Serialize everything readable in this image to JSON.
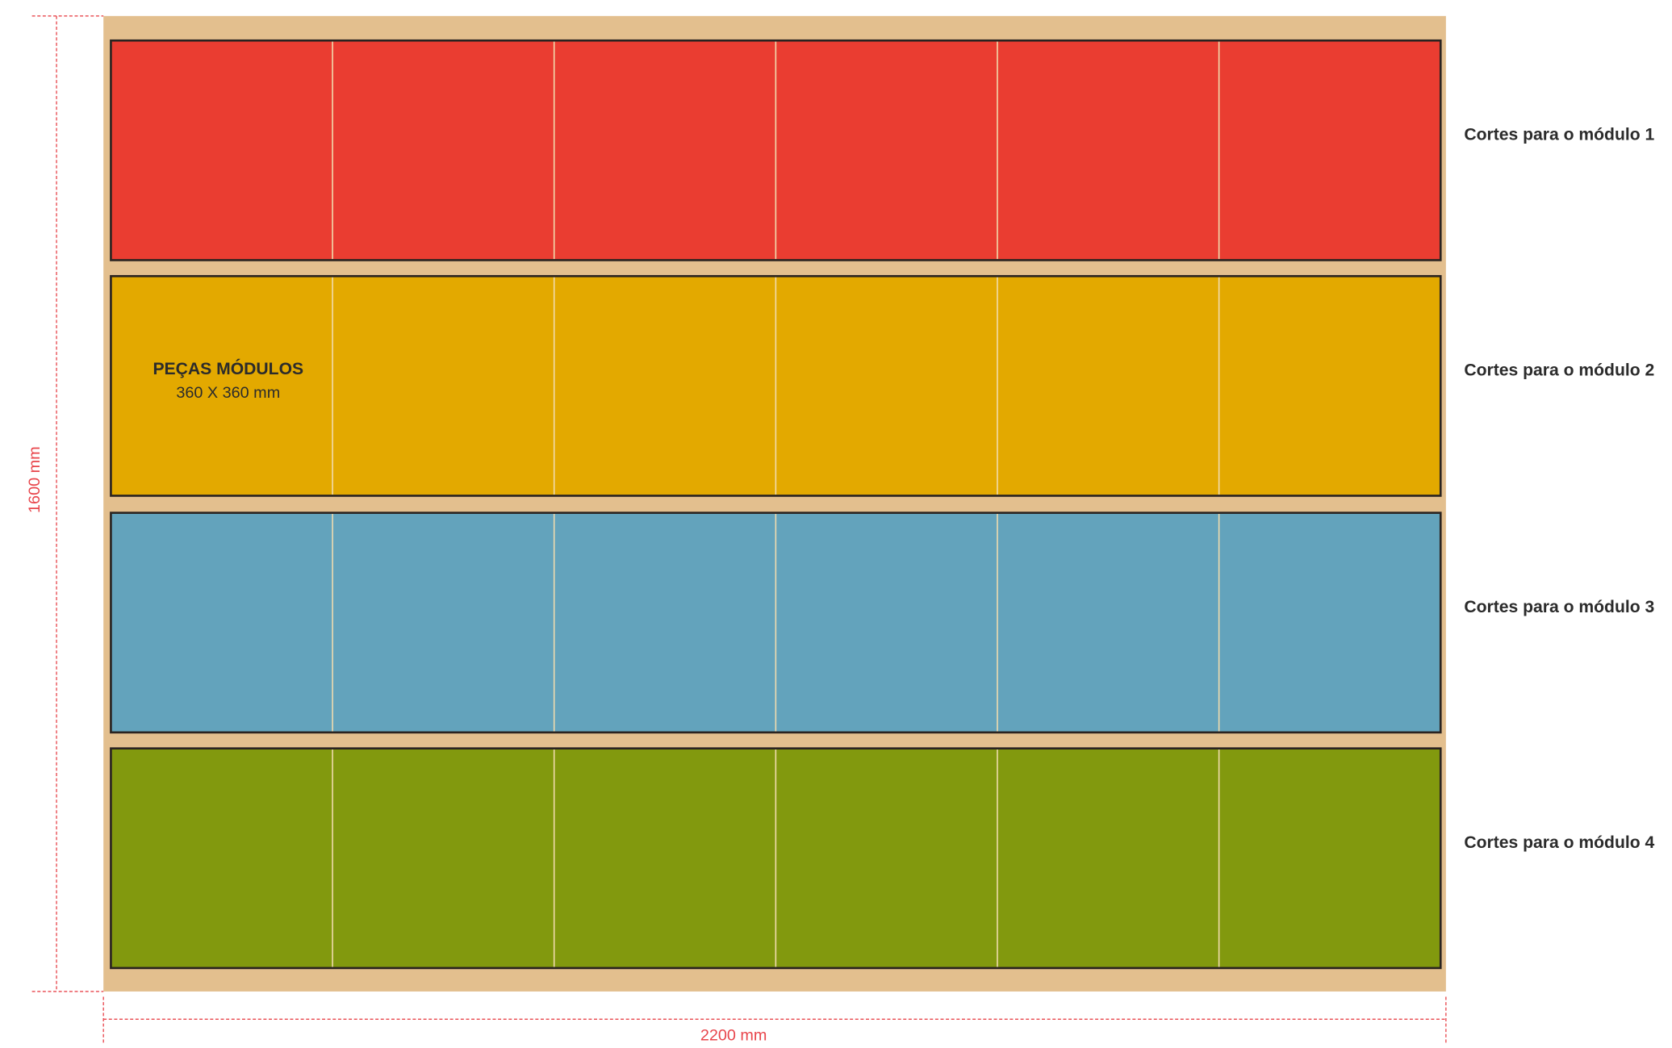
{
  "dimensions": {
    "height": "1600 mm",
    "width": "2200 mm"
  },
  "piece_label": {
    "title": "PEÇAS MÓDULOS",
    "size": "360 X 360 mm"
  },
  "modules": [
    {
      "label": "Cortes para o módulo 1",
      "color": "#ea3d31"
    },
    {
      "label": "Cortes para o módulo 2",
      "color": "#e3a900"
    },
    {
      "label": "Cortes para o módulo 3",
      "color": "#63a3bc"
    },
    {
      "label": "Cortes para o módulo 4",
      "color": "#82990e"
    }
  ]
}
